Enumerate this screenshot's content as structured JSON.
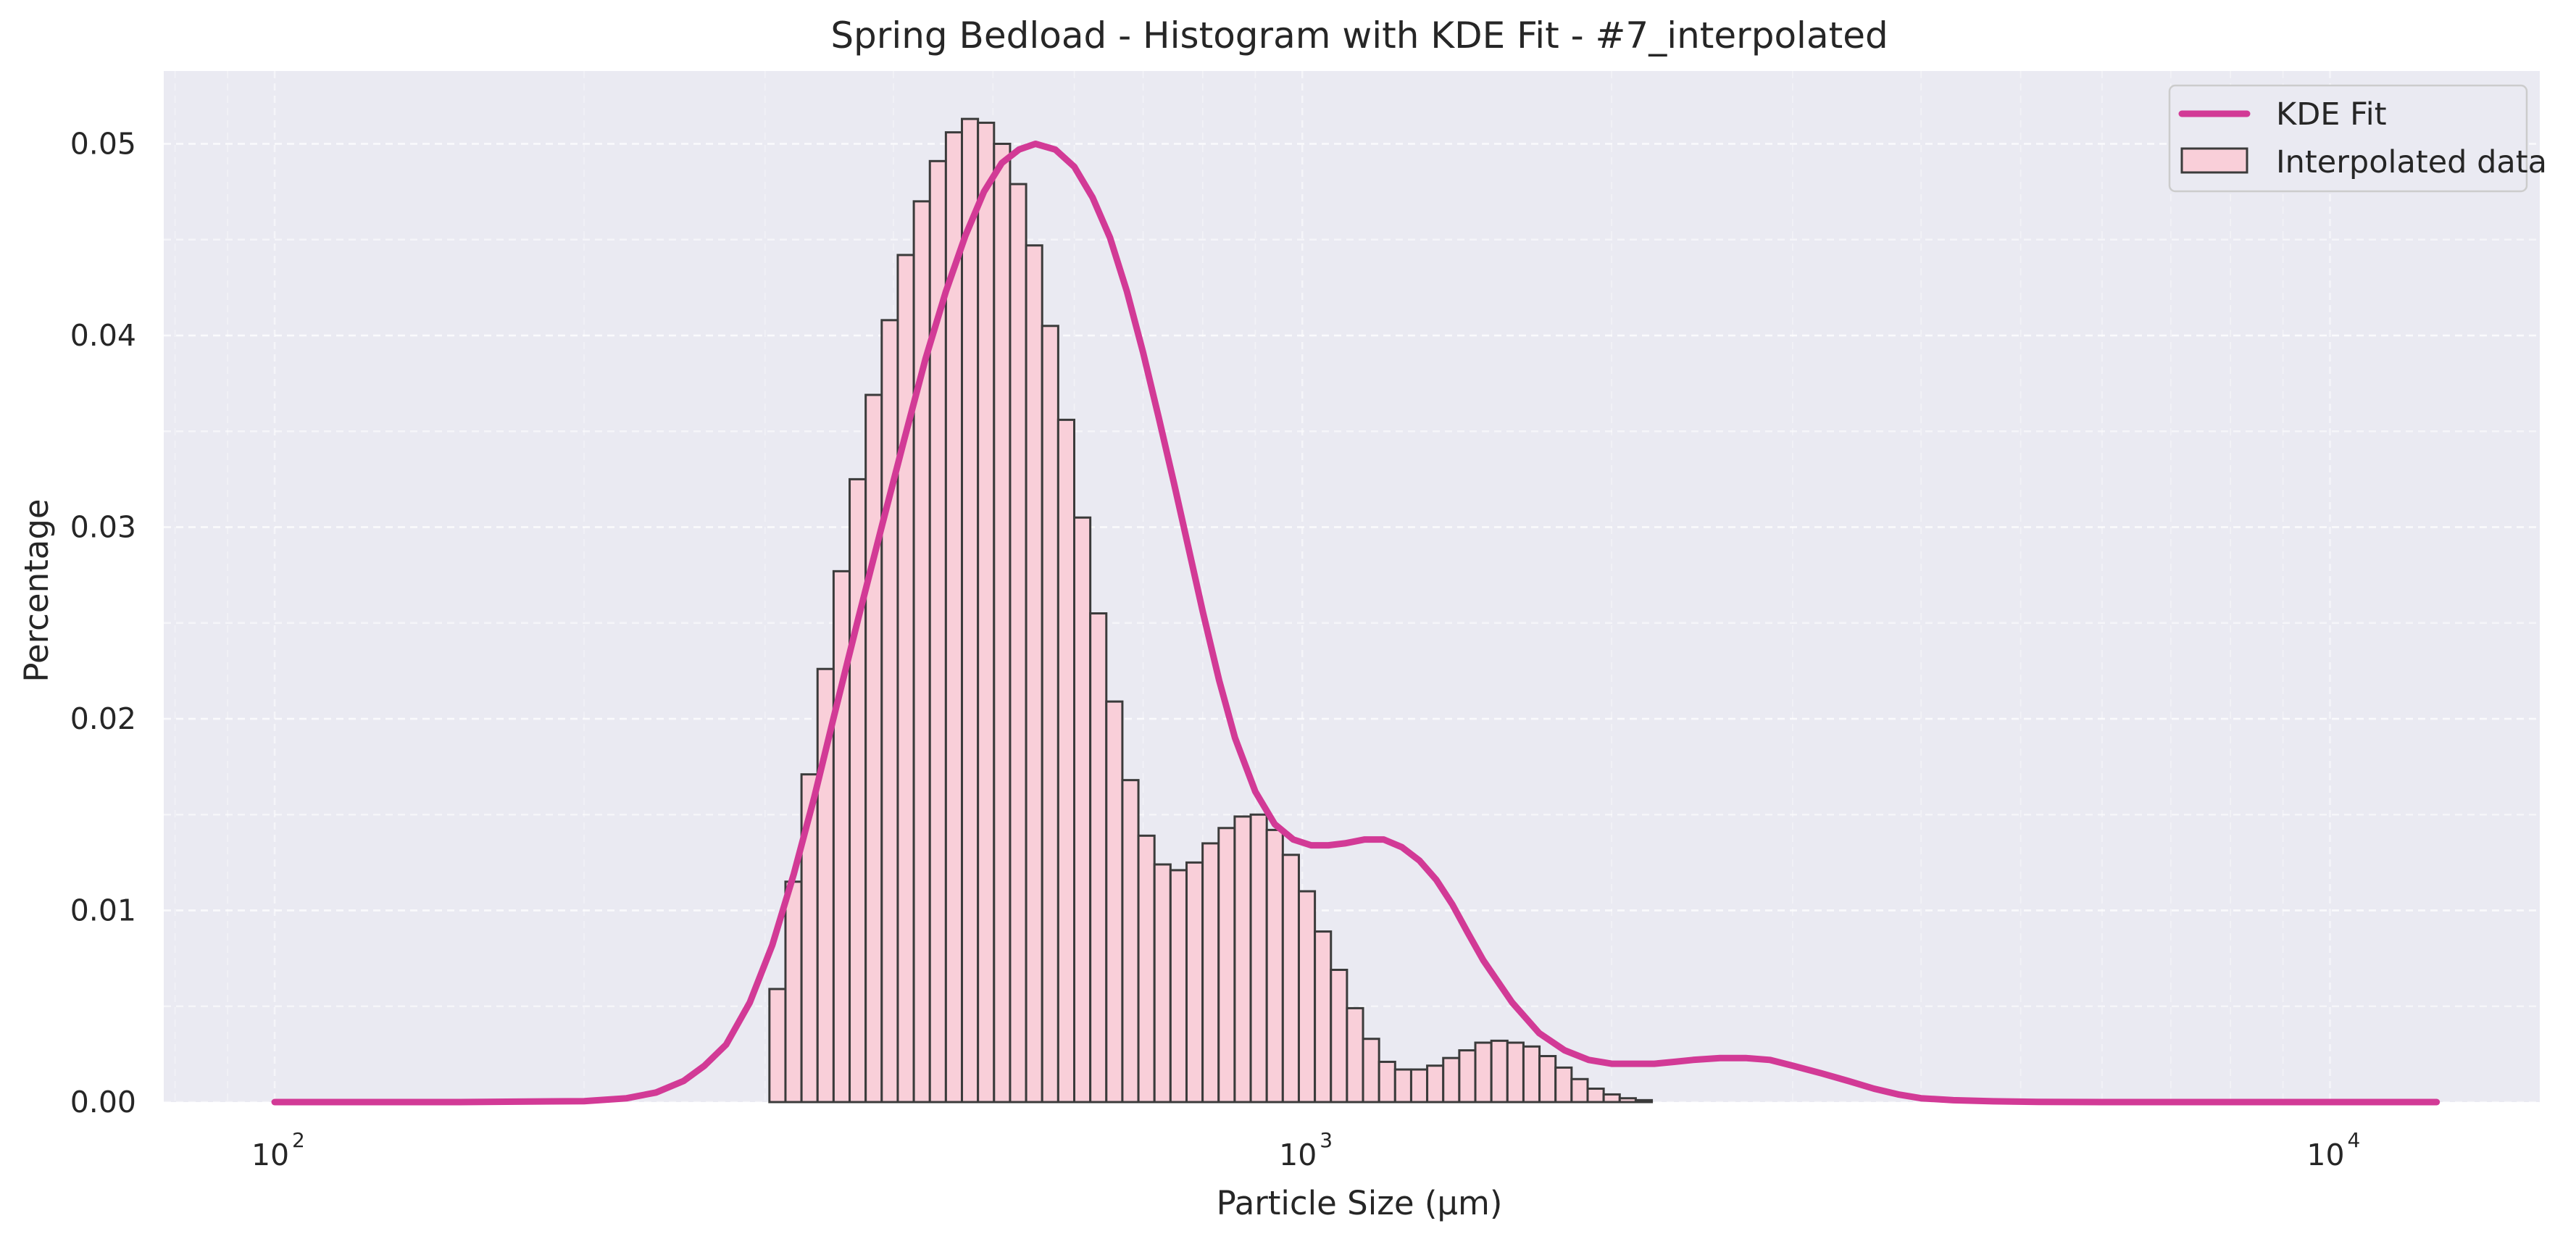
{
  "chart_data": {
    "type": "bar",
    "title": "Spring Bedload - Histogram with KDE Fit - #7_interpolated",
    "xlabel": "Particle Size (μm)",
    "ylabel": "Percentage",
    "x_scale": "log",
    "xlim": [
      78,
      16000
    ],
    "ylim": [
      0,
      0.0538
    ],
    "grid": true,
    "legend_position": "top-right",
    "x_ticks": [
      {
        "value": 100,
        "base": "10",
        "exp": "2"
      },
      {
        "value": 1000,
        "base": "10",
        "exp": "3"
      },
      {
        "value": 10000,
        "base": "10",
        "exp": "4"
      }
    ],
    "y_ticks": [
      {
        "value": 0.0,
        "label": "0.00"
      },
      {
        "value": 0.01,
        "label": "0.01"
      },
      {
        "value": 0.02,
        "label": "0.02"
      },
      {
        "value": 0.03,
        "label": "0.03"
      },
      {
        "value": 0.04,
        "label": "0.04"
      },
      {
        "value": 0.05,
        "label": "0.05"
      }
    ],
    "histogram": {
      "name": "Interpolated data",
      "bin_start": 303,
      "bin_ratio": 1.0366,
      "values": [
        0.0059,
        0.0115,
        0.0171,
        0.0226,
        0.0277,
        0.0325,
        0.0369,
        0.0408,
        0.0442,
        0.047,
        0.0491,
        0.0506,
        0.0513,
        0.0511,
        0.05,
        0.0479,
        0.0447,
        0.0405,
        0.0356,
        0.0305,
        0.0255,
        0.0209,
        0.0168,
        0.0139,
        0.0124,
        0.0121,
        0.0125,
        0.0135,
        0.0143,
        0.0149,
        0.015,
        0.0142,
        0.0129,
        0.011,
        0.0089,
        0.0069,
        0.0049,
        0.0033,
        0.0021,
        0.0017,
        0.0017,
        0.0019,
        0.0023,
        0.0027,
        0.0031,
        0.0032,
        0.0031,
        0.0029,
        0.0024,
        0.0018,
        0.0012,
        0.0007,
        0.0004,
        0.0002,
        0.0001
      ]
    },
    "kde": {
      "name": "KDE Fit",
      "x": [
        100,
        150,
        200,
        220,
        235,
        250,
        262,
        275,
        290,
        305,
        320,
        335,
        350,
        370,
        390,
        410,
        430,
        450,
        470,
        490,
        510,
        530,
        550,
        575,
        600,
        625,
        650,
        675,
        700,
        725,
        750,
        775,
        800,
        830,
        860,
        900,
        940,
        980,
        1020,
        1060,
        1100,
        1150,
        1200,
        1250,
        1300,
        1350,
        1400,
        1450,
        1500,
        1600,
        1700,
        1800,
        1900,
        2000,
        2100,
        2200,
        2300,
        2400,
        2550,
        2700,
        2850,
        3000,
        3200,
        3400,
        3600,
        3800,
        4000,
        4300,
        4700,
        5200,
        6000,
        8000,
        10000,
        12700
      ],
      "y": [
        0.0,
        0.0,
        5e-05,
        0.0002,
        0.0005,
        0.0011,
        0.0019,
        0.003,
        0.0052,
        0.0082,
        0.0119,
        0.0159,
        0.0201,
        0.0253,
        0.0301,
        0.0346,
        0.0388,
        0.0423,
        0.0452,
        0.0475,
        0.049,
        0.0497,
        0.05,
        0.0497,
        0.0488,
        0.0472,
        0.0451,
        0.0423,
        0.0391,
        0.0357,
        0.0323,
        0.0289,
        0.0256,
        0.022,
        0.019,
        0.0162,
        0.0145,
        0.0137,
        0.0134,
        0.0134,
        0.0135,
        0.0137,
        0.0137,
        0.0133,
        0.0126,
        0.0116,
        0.0103,
        0.0088,
        0.0074,
        0.0052,
        0.0036,
        0.0027,
        0.0022,
        0.002,
        0.002,
        0.002,
        0.0021,
        0.0022,
        0.0023,
        0.0023,
        0.0022,
        0.0019,
        0.0015,
        0.0011,
        0.0007,
        0.0004,
        0.0002,
        0.0001,
        4e-05,
        1e-05,
        0.0,
        0.0,
        0.0,
        0.0
      ]
    },
    "colors": {
      "plot_background": "#eaeaf2",
      "grid": "#ffffff",
      "bar_fill": "#f9cfd9",
      "bar_edge": "#3b3b3b",
      "kde_line": "#d23a96",
      "text": "#262626"
    }
  }
}
